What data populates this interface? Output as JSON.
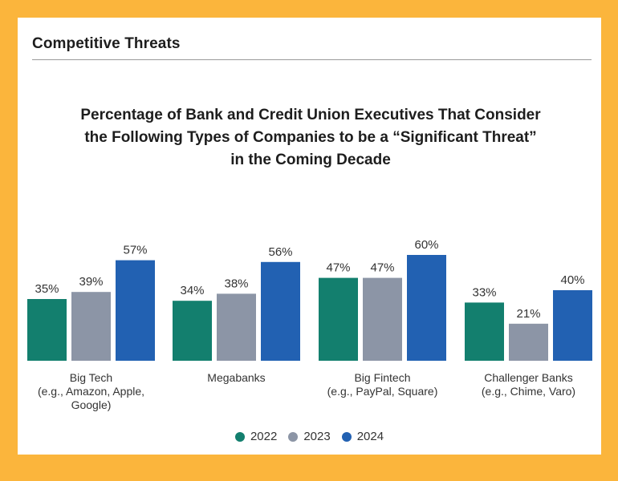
{
  "section_title": "Competitive Threats",
  "colors": {
    "frame": "#FBB53C",
    "2022": "#137F6E",
    "2023": "#8C95A6",
    "2024": "#2261B2"
  },
  "chart_data": {
    "type": "bar",
    "title_lines": [
      "Percentage of Bank and Credit Union Executives That Consider",
      "the Following Types of Companies to be a “Significant Threat”",
      "in the Coming Decade"
    ],
    "categories": [
      [
        "Big Tech",
        "(e.g., Amazon, Apple,",
        "Google)"
      ],
      [
        "Megabanks"
      ],
      [
        "Big Fintech",
        "(e.g., PayPal, Square)"
      ],
      [
        "Challenger Banks",
        "(e.g., Chime, Varo)"
      ]
    ],
    "series": [
      {
        "name": "2022",
        "values": [
          35,
          34,
          47,
          33
        ]
      },
      {
        "name": "2023",
        "values": [
          39,
          38,
          47,
          21
        ]
      },
      {
        "name": "2024",
        "values": [
          57,
          56,
          60,
          40
        ]
      }
    ],
    "value_suffix": "%",
    "ylim": [
      0,
      60
    ],
    "grid": false,
    "legend_position": "bottom-center"
  }
}
